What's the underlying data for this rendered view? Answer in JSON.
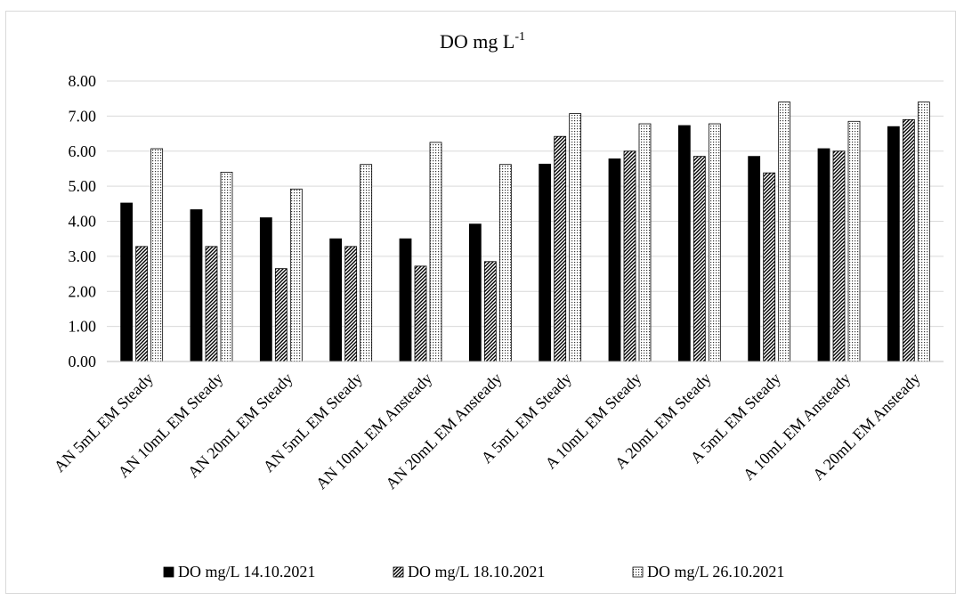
{
  "chart_data": {
    "type": "bar",
    "title": "DO mg L",
    "title_superscript": "-1",
    "xlabel": "",
    "ylabel": "",
    "ylim": [
      0,
      8
    ],
    "y_ticks": [
      "0.00",
      "1.00",
      "2.00",
      "3.00",
      "4.00",
      "5.00",
      "6.00",
      "7.00",
      "8.00"
    ],
    "grid": true,
    "legend_position": "bottom",
    "categories": [
      "AN 5mL EM Steady",
      "AN 10mL EM Steady",
      "AN 20mL EM Steady",
      "AN  5mL EM Steady",
      "AN 10mL EM Ansteady",
      "AN 20mL EM Ansteady",
      "A 5mL EM Steady",
      "A 10mL EM Steady",
      "A 20mL EM Steady",
      "A 5mL EM Steady",
      "A 10mL EM Ansteady",
      "A 20mL EM Ansteady"
    ],
    "series": [
      {
        "name": "DO mg/L 14.10.2021",
        "pattern": "solid",
        "color": "#000000",
        "values": [
          4.52,
          4.33,
          4.1,
          3.5,
          3.5,
          3.92,
          5.63,
          5.78,
          6.73,
          5.85,
          6.07,
          6.7
        ]
      },
      {
        "name": "DO mg/L 18.10.2021",
        "pattern": "diagonal-hatch",
        "color": "#000000",
        "values": [
          3.28,
          3.28,
          2.65,
          3.28,
          2.72,
          2.85,
          6.42,
          6.0,
          5.85,
          5.38,
          6.0,
          6.9
        ]
      },
      {
        "name": "DO mg/L 26.10.2021",
        "pattern": "dots",
        "color": "#000000",
        "values": [
          6.07,
          5.4,
          4.92,
          5.62,
          6.25,
          5.62,
          7.07,
          6.78,
          6.78,
          7.4,
          6.85,
          7.4
        ]
      }
    ]
  }
}
